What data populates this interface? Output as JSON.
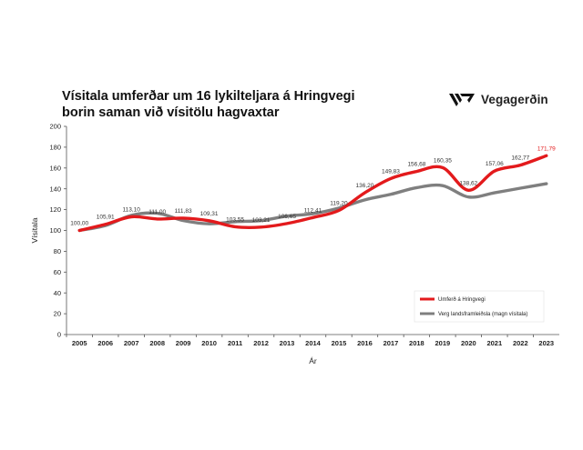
{
  "title_lines": [
    "Vísitala umferðar um 16 lykilteljara á Hringvegi",
    "borin saman við vísitölu hagvaxtar"
  ],
  "brand": {
    "name": "Vegagerðin",
    "logo_icon": "vegagerdin-logo-icon"
  },
  "colors": {
    "traffic": "#e31a1c",
    "gdp": "#7f7f7f",
    "last_label": "#e31a1c",
    "label": "#333333"
  },
  "chart_data": {
    "type": "line",
    "xlabel": "Ár",
    "ylabel": "Vísitala",
    "ylim": [
      0,
      200
    ],
    "yticks": [
      0,
      20,
      40,
      60,
      80,
      100,
      120,
      140,
      160,
      180,
      200
    ],
    "grid": false,
    "legend_position": "bottom-right",
    "categories": [
      "2005",
      "2006",
      "2007",
      "2008",
      "2009",
      "2010",
      "2011",
      "2012",
      "2013",
      "2014",
      "2015",
      "2016",
      "2017",
      "2018",
      "2019",
      "2020",
      "2021",
      "2022",
      "2023"
    ],
    "series": [
      {
        "name": "Umferð á Hringvegi",
        "values": [
          100.0,
          105.91,
          113.1,
          111.0,
          111.83,
          109.31,
          103.55,
          103.21,
          106.65,
          112.41,
          119.2,
          136.2,
          149.83,
          156.68,
          160.35,
          138.62,
          157.06,
          162.77,
          171.79
        ],
        "labels": [
          "100,00",
          "105,91",
          "113,10",
          "111,00",
          "111,83",
          "109,31",
          "103,55",
          "103,21",
          "106,65",
          "112,41",
          "119,20",
          "136,20",
          "149,83",
          "156,68",
          "160,35",
          "138,62",
          "157,06",
          "162,77",
          "171,79"
        ]
      },
      {
        "name": "Verg landsframleiðsla (magn vísitala)",
        "values": [
          100.0,
          104.7,
          114.5,
          116.5,
          109.5,
          106.4,
          108.4,
          109.5,
          113.8,
          116.1,
          121.5,
          129.4,
          134.7,
          141.1,
          143.1,
          132.1,
          136.2,
          140.6,
          144.9
        ],
        "labels": []
      }
    ]
  }
}
